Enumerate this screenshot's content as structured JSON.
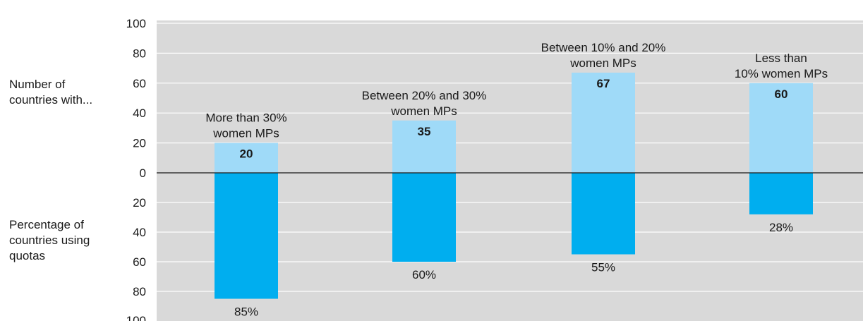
{
  "labels": {
    "top": [
      "Number of",
      "countries with..."
    ],
    "bottom": [
      "Percentage of",
      "countries using",
      "quotas"
    ]
  },
  "colors": {
    "plot_bg": "#d9d9d9",
    "grid": "#ffffff",
    "top_bar": "#9fdaf8",
    "bottom_bar": "#00aeef",
    "axis": "#1a1a1a"
  },
  "chart_data": {
    "type": "bar",
    "categories": [
      [
        "More than 30%",
        "women MPs"
      ],
      [
        "Between 20% and 30%",
        "women MPs"
      ],
      [
        "Between 10% and 20%",
        "women MPs"
      ],
      [
        "Less than",
        "10% women MPs"
      ]
    ],
    "series": [
      {
        "name": "Number of countries with...",
        "values": [
          20,
          35,
          67,
          60
        ],
        "labels": [
          "20",
          "35",
          "67",
          "60"
        ]
      },
      {
        "name": "Percentage of countries using quotas",
        "values": [
          85,
          60,
          55,
          28
        ],
        "labels": [
          "85%",
          "60%",
          "55%",
          "28%"
        ]
      }
    ],
    "y_top_ticks": [
      "100",
      "80",
      "60",
      "40",
      "20"
    ],
    "zero_tick": "0",
    "y_bottom_ticks": [
      "20",
      "40",
      "60",
      "80",
      "100"
    ],
    "ylim_top": [
      0,
      100
    ],
    "ylim_bottom": [
      0,
      100
    ],
    "grid": true
  }
}
